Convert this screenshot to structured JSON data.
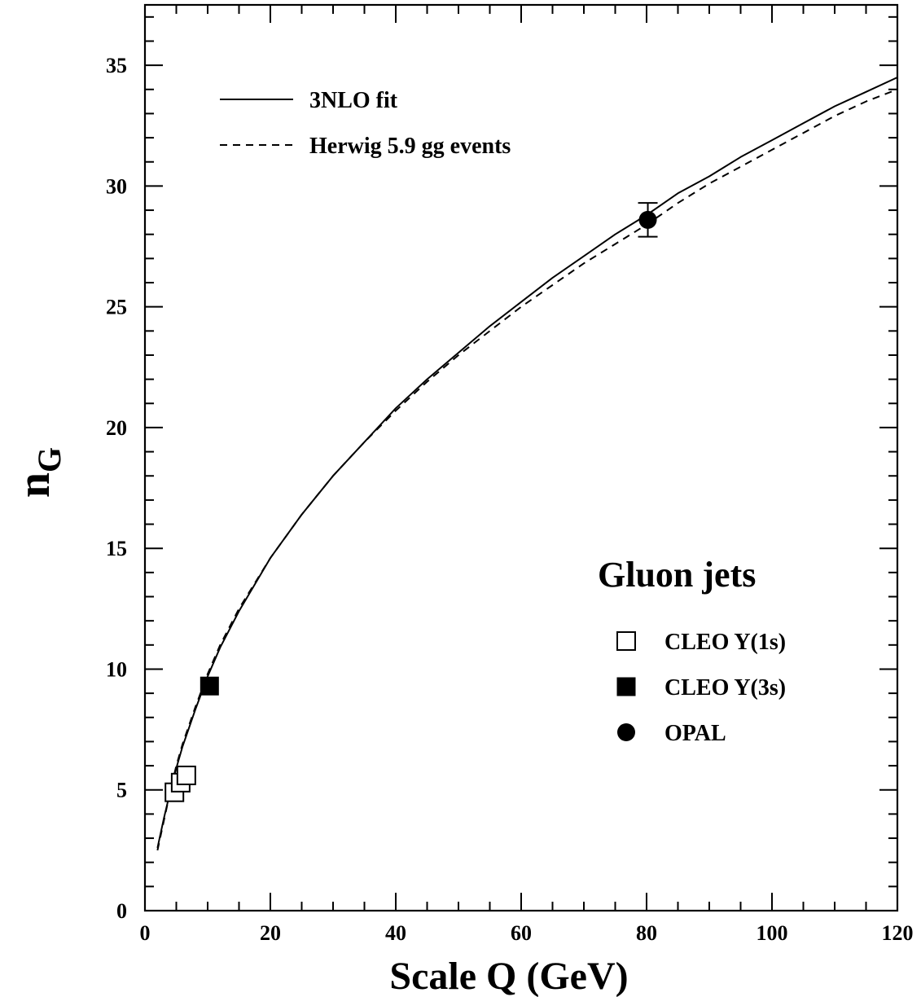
{
  "chart_data": {
    "type": "line",
    "xlabel": "Scale Q (GeV)",
    "ylabel_main": "n",
    "ylabel_sub": "G",
    "xlim": [
      0,
      120
    ],
    "ylim": [
      0,
      37.5
    ],
    "x_ticks": [
      0,
      20,
      40,
      60,
      80,
      100,
      120
    ],
    "y_ticks": [
      0,
      5,
      10,
      15,
      20,
      25,
      30,
      35
    ],
    "x_minor_step": 5,
    "y_minor_step": 1,
    "grid": false,
    "series": [
      {
        "name": "3NLO fit",
        "style": "solid",
        "x": [
          2,
          3,
          4,
          5,
          6,
          8,
          10,
          12,
          15,
          20,
          25,
          30,
          35,
          40,
          45,
          50,
          55,
          60,
          65,
          70,
          75,
          80,
          85,
          90,
          95,
          100,
          105,
          110,
          115,
          120
        ],
        "y": [
          2.6,
          3.8,
          4.9,
          5.9,
          6.8,
          8.3,
          9.7,
          10.9,
          12.4,
          14.6,
          16.4,
          18.0,
          19.4,
          20.8,
          22.0,
          23.1,
          24.2,
          25.2,
          26.2,
          27.1,
          28.0,
          28.8,
          29.7,
          30.4,
          31.2,
          31.9,
          32.6,
          33.3,
          33.9,
          34.5
        ]
      },
      {
        "name": "Herwig 5.9 gg events",
        "style": "dashed",
        "x": [
          2,
          3,
          4,
          5,
          6,
          8,
          10,
          12,
          15,
          20,
          25,
          30,
          35,
          40,
          45,
          50,
          55,
          60,
          65,
          70,
          75,
          80,
          85,
          90,
          95,
          100,
          105,
          110,
          115,
          120
        ],
        "y": [
          2.5,
          3.7,
          4.9,
          6.0,
          6.9,
          8.4,
          9.8,
          11.0,
          12.5,
          14.6,
          16.4,
          18.0,
          19.4,
          20.7,
          21.9,
          23.0,
          24.0,
          25.0,
          25.9,
          26.8,
          27.6,
          28.4,
          29.3,
          30.1,
          30.8,
          31.5,
          32.2,
          32.9,
          33.5,
          34.0
        ]
      }
    ],
    "points": [
      {
        "name": "CLEO Υ(1s)",
        "marker": "open-square",
        "x": [
          4.7,
          5.7,
          6.6
        ],
        "y": [
          4.9,
          5.3,
          5.6
        ]
      },
      {
        "name": "CLEO Υ(3s)",
        "marker": "filled-square",
        "x": [
          10.3
        ],
        "y": [
          9.3
        ]
      },
      {
        "name": "OPAL",
        "marker": "filled-circle",
        "x": [
          80.2
        ],
        "y": [
          28.6
        ],
        "yerr": [
          0.7
        ]
      }
    ],
    "legend_lines": [
      {
        "label": "3NLO fit",
        "style": "solid"
      },
      {
        "label": "Herwig 5.9 gg events",
        "style": "dashed"
      }
    ],
    "legend_markers_title": "Gluon jets",
    "legend_markers": [
      {
        "label": "CLEO Y(1s)",
        "marker": "open-square"
      },
      {
        "label": "CLEO Y(3s)",
        "marker": "filled-square"
      },
      {
        "label": "OPAL",
        "marker": "filled-circle"
      }
    ],
    "legend_placement": "lines top-left, markers bottom-right"
  }
}
